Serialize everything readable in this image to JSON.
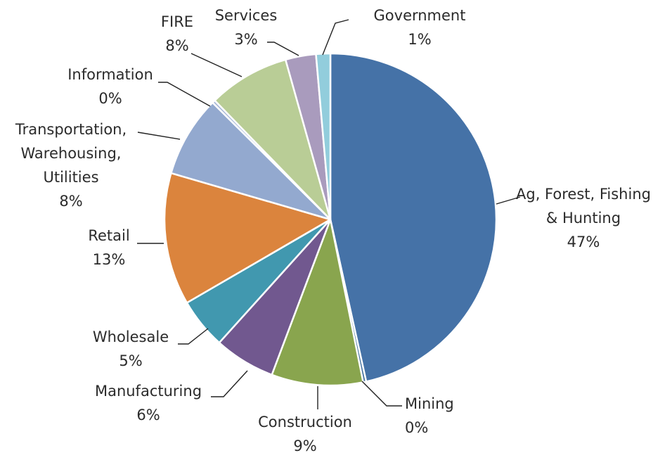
{
  "chart_data": {
    "type": "pie",
    "title": "",
    "slices": [
      {
        "lines": [
          "Ag, Forest, Fishing",
          "& Hunting"
        ],
        "pct_label": "47%",
        "value": 47,
        "color": "#4572A7"
      },
      {
        "lines": [
          "Mining"
        ],
        "pct_label": "0%",
        "value": 0.3,
        "color": "#3F6E9E"
      },
      {
        "lines": [
          "Construction"
        ],
        "pct_label": "9%",
        "value": 9,
        "color": "#89A54E"
      },
      {
        "lines": [
          "Manufacturing"
        ],
        "pct_label": "6%",
        "value": 6,
        "color": "#71588F"
      },
      {
        "lines": [
          "Wholesale"
        ],
        "pct_label": "5%",
        "value": 5,
        "color": "#4198AF"
      },
      {
        "lines": [
          "Retail"
        ],
        "pct_label": "13%",
        "value": 13,
        "color": "#DB843D"
      },
      {
        "lines": [
          "Transportation,",
          "Warehousing,",
          "Utilities"
        ],
        "pct_label": "8%",
        "value": 8,
        "color": "#93A9CF"
      },
      {
        "lines": [
          "Information"
        ],
        "pct_label": "0%",
        "value": 0.3,
        "color": "#A8B8D8"
      },
      {
        "lines": [
          "FIRE"
        ],
        "pct_label": "8%",
        "value": 8,
        "color": "#B9CD96"
      },
      {
        "lines": [
          "Services"
        ],
        "pct_label": "3%",
        "value": 3,
        "color": "#A99BBD"
      },
      {
        "lines": [
          "Government"
        ],
        "pct_label": "1%",
        "value": 1.4,
        "color": "#92CDDC"
      }
    ]
  }
}
